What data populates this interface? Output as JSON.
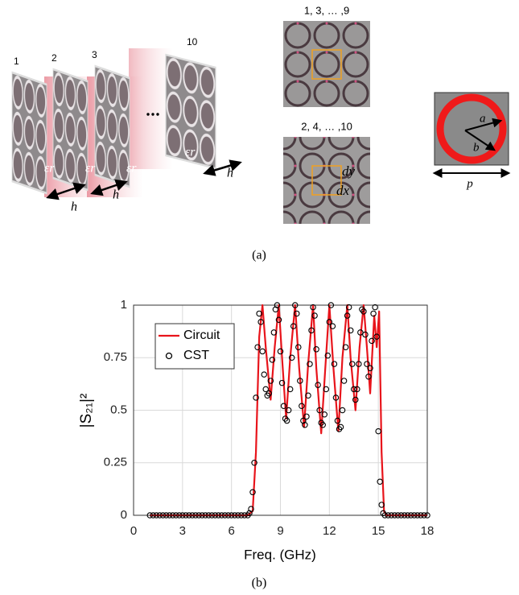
{
  "diagram": {
    "layer_labels": [
      "1",
      "2",
      "3",
      "10"
    ],
    "permittivity_label": "εr",
    "thickness_label": "h",
    "odd_layers": "1, 3, … ,9",
    "even_layers": "2, 4, … ,10",
    "offset_y": "dy",
    "offset_x": "dx",
    "inner_radius": "a",
    "outer_radius": "b",
    "period": "p",
    "panel_label": "(a)"
  },
  "chart_data": {
    "type": "line",
    "panel_label": "(b)",
    "xlabel": "Freq. (GHz)",
    "ylabel": "|S₂₁|²",
    "xlim": [
      0,
      18
    ],
    "ylim": [
      0,
      1
    ],
    "xticks": [
      0,
      3,
      6,
      9,
      12,
      15,
      18
    ],
    "yticks": [
      0,
      0.25,
      0.5,
      0.75,
      1
    ],
    "grid": true,
    "legend": "upper left",
    "series": [
      {
        "name": "Circuit",
        "color": "#e8141b",
        "marker": "none",
        "x": [
          1,
          7,
          7.3,
          7.5,
          7.7,
          7.9,
          8.1,
          8.4,
          8.65,
          8.9,
          9.1,
          9.35,
          9.6,
          9.9,
          10.15,
          10.45,
          10.7,
          11.0,
          11.2,
          11.5,
          11.75,
          12.0,
          12.25,
          12.55,
          12.8,
          13.1,
          13.3,
          13.6,
          13.85,
          14.1,
          14.3,
          14.5,
          14.75,
          14.9,
          15.05,
          15.2,
          15.35,
          15.5,
          18
        ],
        "values": [
          0,
          0,
          0.02,
          0.3,
          0.85,
          1,
          0.8,
          0.55,
          0.8,
          1,
          0.75,
          0.46,
          0.75,
          1,
          0.7,
          0.42,
          0.72,
          1,
          0.7,
          0.39,
          0.7,
          1,
          0.7,
          0.4,
          0.75,
          1,
          0.75,
          0.5,
          0.8,
          1,
          0.8,
          0.58,
          0.95,
          0.8,
          0.97,
          0.3,
          0.02,
          0,
          0
        ]
      },
      {
        "name": "CST",
        "color": "#000000",
        "marker": "circle",
        "x": [
          1,
          1.2,
          1.4,
          1.6,
          1.8,
          2,
          2.2,
          2.4,
          2.6,
          2.8,
          3,
          3.2,
          3.4,
          3.6,
          3.8,
          4,
          4.2,
          4.4,
          4.6,
          4.8,
          5,
          5.2,
          5.4,
          5.6,
          5.8,
          6,
          6.2,
          6.4,
          6.6,
          6.8,
          7,
          7.1,
          7.2,
          7.3,
          7.4,
          7.5,
          7.6,
          7.7,
          7.8,
          7.9,
          8,
          8.1,
          8.2,
          8.3,
          8.4,
          8.5,
          8.6,
          8.7,
          8.8,
          8.9,
          9,
          9.1,
          9.2,
          9.3,
          9.4,
          9.5,
          9.6,
          9.7,
          9.8,
          9.9,
          10,
          10.1,
          10.2,
          10.3,
          10.4,
          10.5,
          10.6,
          10.7,
          10.8,
          10.9,
          11,
          11.1,
          11.2,
          11.3,
          11.4,
          11.5,
          11.6,
          11.7,
          11.8,
          11.9,
          12,
          12.1,
          12.2,
          12.3,
          12.4,
          12.5,
          12.6,
          12.7,
          12.8,
          12.9,
          13,
          13.1,
          13.2,
          13.3,
          13.4,
          13.5,
          13.6,
          13.7,
          13.8,
          13.9,
          14,
          14.1,
          14.2,
          14.3,
          14.4,
          14.5,
          14.6,
          14.7,
          14.8,
          14.9,
          15,
          15.1,
          15.2,
          15.3,
          15.4,
          15.6,
          15.8,
          16,
          16.2,
          16.4,
          16.6,
          16.8,
          17,
          17.2,
          17.4,
          17.6,
          17.8,
          18
        ],
        "values": [
          0,
          0,
          0,
          0,
          0,
          0,
          0,
          0,
          0,
          0,
          0,
          0,
          0,
          0,
          0,
          0,
          0,
          0,
          0,
          0,
          0,
          0,
          0,
          0,
          0,
          0,
          0,
          0,
          0,
          0,
          0,
          0.01,
          0.03,
          0.11,
          0.25,
          0.56,
          0.8,
          0.96,
          0.92,
          0.78,
          0.67,
          0.6,
          0.57,
          0.58,
          0.64,
          0.74,
          0.87,
          0.98,
          1,
          0.93,
          0.78,
          0.63,
          0.52,
          0.46,
          0.45,
          0.5,
          0.6,
          0.75,
          0.9,
          1,
          0.96,
          0.8,
          0.64,
          0.52,
          0.45,
          0.43,
          0.47,
          0.57,
          0.72,
          0.88,
          0.99,
          0.95,
          0.79,
          0.62,
          0.5,
          0.44,
          0.43,
          0.48,
          0.6,
          0.76,
          0.92,
          1,
          0.9,
          0.72,
          0.56,
          0.45,
          0.41,
          0.42,
          0.5,
          0.64,
          0.8,
          0.95,
          0.99,
          0.88,
          0.72,
          0.6,
          0.55,
          0.6,
          0.72,
          0.87,
          0.98,
          0.97,
          0.86,
          0.72,
          0.66,
          0.7,
          0.83,
          0.96,
          0.99,
          0.85,
          0.4,
          0.16,
          0.05,
          0.01,
          0,
          0,
          0,
          0,
          0,
          0,
          0,
          0,
          0,
          0,
          0,
          0,
          0,
          0
        ]
      }
    ]
  }
}
